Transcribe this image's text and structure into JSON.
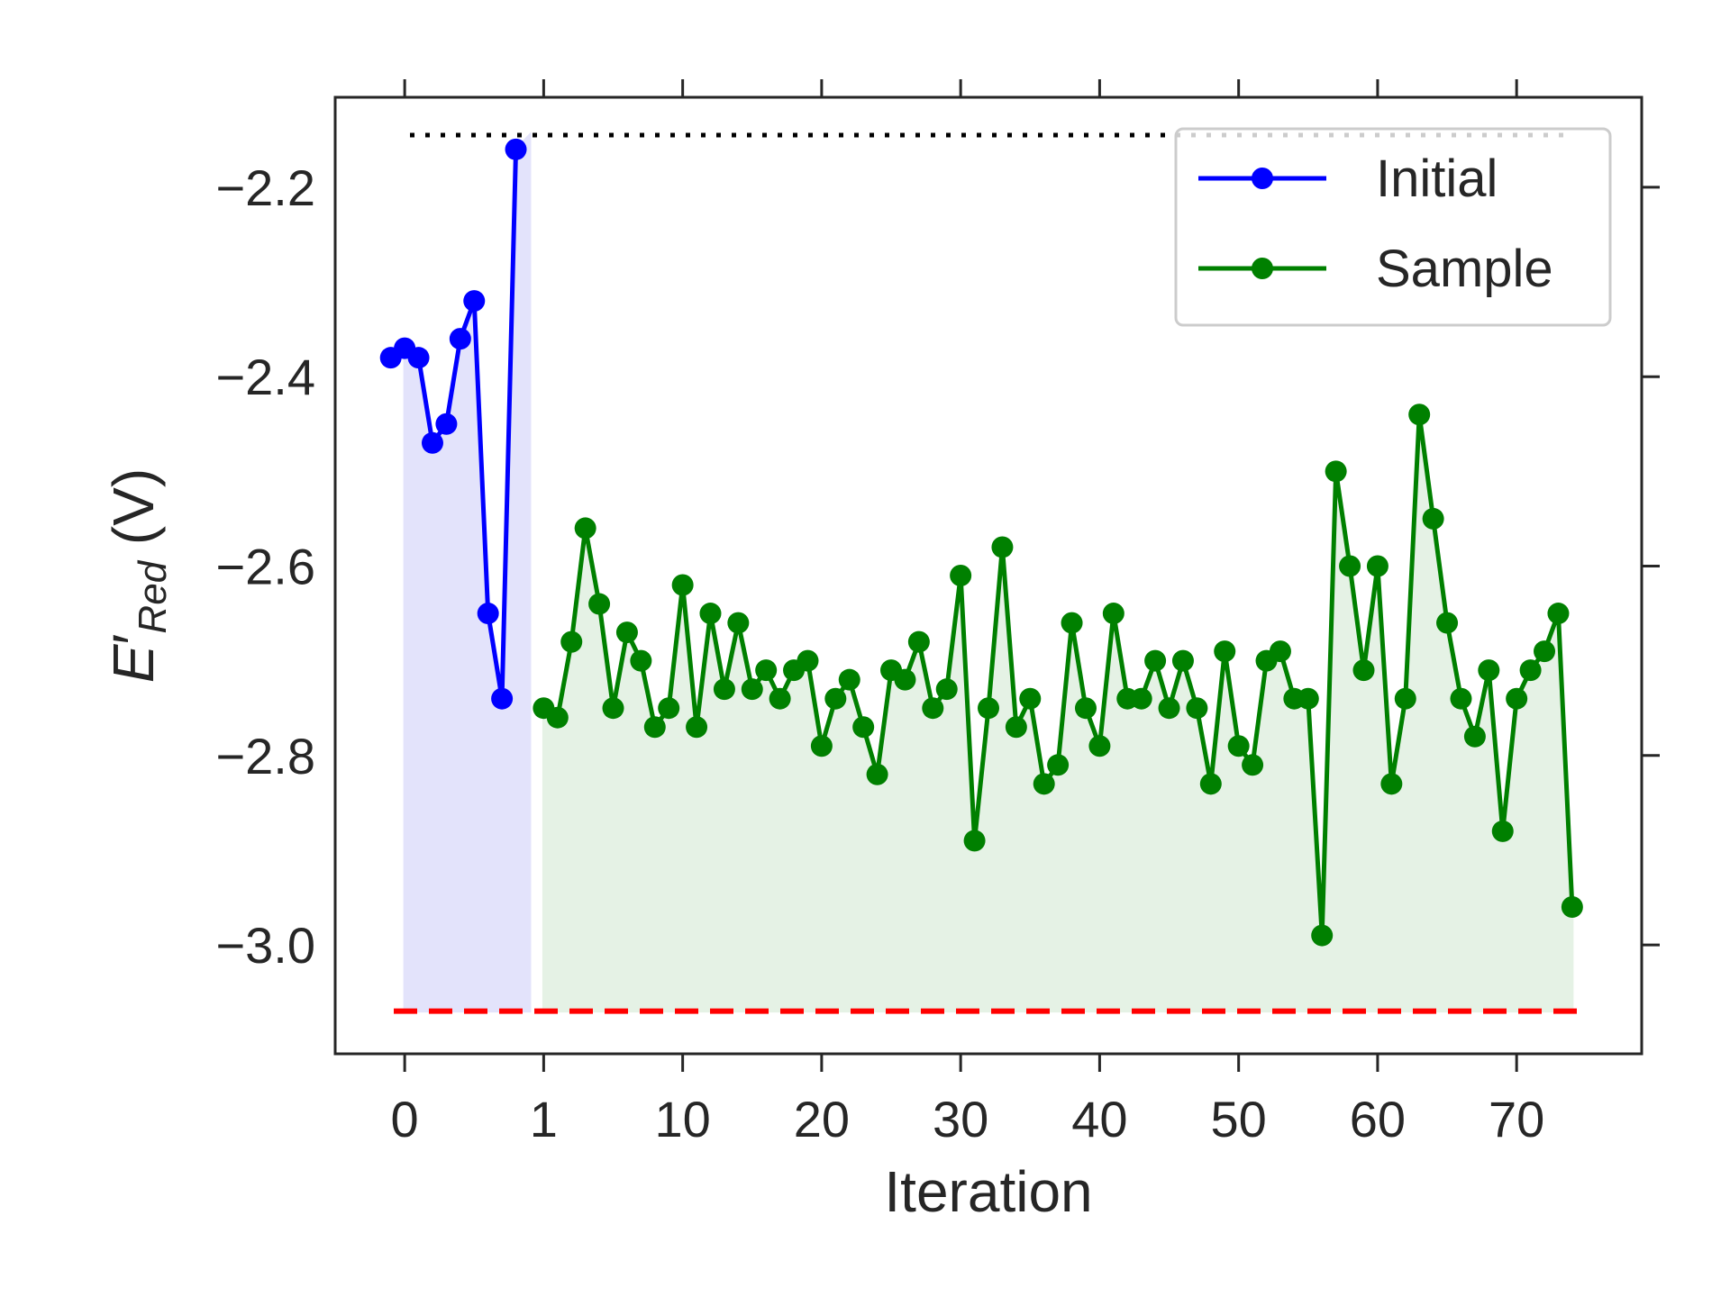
{
  "chart_data": {
    "type": "line",
    "xlabel": "Iteration",
    "ylabel": {
      "symbol": "E",
      "prime": "′",
      "subscript": "Red",
      "unit": " (V)"
    },
    "xlim": [
      -0.5,
      8.9
    ],
    "ylim": [
      -3.115,
      -2.105
    ],
    "x_ticks": [
      {
        "pos": 0,
        "label": "0"
      },
      {
        "pos": 1,
        "label": "1"
      },
      {
        "pos": 2,
        "label": "10"
      },
      {
        "pos": 3,
        "label": "20"
      },
      {
        "pos": 4,
        "label": "30"
      },
      {
        "pos": 5,
        "label": "40"
      },
      {
        "pos": 6,
        "label": "50"
      },
      {
        "pos": 7,
        "label": "60"
      },
      {
        "pos": 8,
        "label": "70"
      }
    ],
    "y_ticks": [
      {
        "value": -2.2,
        "label": "−2.2"
      },
      {
        "value": -2.4,
        "label": "−2.4"
      },
      {
        "value": -2.6,
        "label": "−2.6"
      },
      {
        "value": -2.8,
        "label": "−2.8"
      },
      {
        "value": -3.0,
        "label": "−3.0"
      }
    ],
    "grid": false,
    "legend_position": "top-right",
    "reference_lines": [
      {
        "style": "dotted",
        "color": "#000000",
        "y": -2.145
      },
      {
        "style": "dashed",
        "color": "#ff0000",
        "y": -3.07
      }
    ],
    "series": [
      {
        "name": "Initial",
        "color": "#0000ff",
        "fill": "#e3e3fb",
        "x": [
          -0.1,
          0.0,
          0.1,
          0.2,
          0.3,
          0.4,
          0.5,
          0.6,
          0.7,
          0.8
        ],
        "y": [
          -2.38,
          -2.37,
          -2.38,
          -2.47,
          -2.45,
          -2.36,
          -2.32,
          -2.65,
          -2.74,
          -2.16
        ]
      },
      {
        "name": "Sample",
        "color": "#008000",
        "fill": "#e5f2e5",
        "x_start": 1,
        "x_step": 0.1,
        "y": [
          -2.75,
          -2.76,
          -2.68,
          -2.56,
          -2.64,
          -2.75,
          -2.67,
          -2.7,
          -2.77,
          -2.75,
          -2.62,
          -2.77,
          -2.65,
          -2.73,
          -2.66,
          -2.73,
          -2.71,
          -2.74,
          -2.71,
          -2.7,
          -2.79,
          -2.74,
          -2.72,
          -2.77,
          -2.82,
          -2.71,
          -2.72,
          -2.68,
          -2.75,
          -2.73,
          -2.61,
          -2.89,
          -2.75,
          -2.58,
          -2.77,
          -2.74,
          -2.83,
          -2.81,
          -2.66,
          -2.75,
          -2.79,
          -2.65,
          -2.74,
          -2.74,
          -2.7,
          -2.75,
          -2.7,
          -2.75,
          -2.83,
          -2.69,
          -2.79,
          -2.81,
          -2.7,
          -2.69,
          -2.74,
          -2.74,
          -2.99,
          -2.5,
          -2.6,
          -2.71,
          -2.6,
          -2.83,
          -2.74,
          -2.44,
          -2.55,
          -2.66,
          -2.74,
          -2.78,
          -2.71,
          -2.88,
          -2.74,
          -2.71,
          -2.69,
          -2.65,
          -2.96
        ]
      }
    ]
  }
}
